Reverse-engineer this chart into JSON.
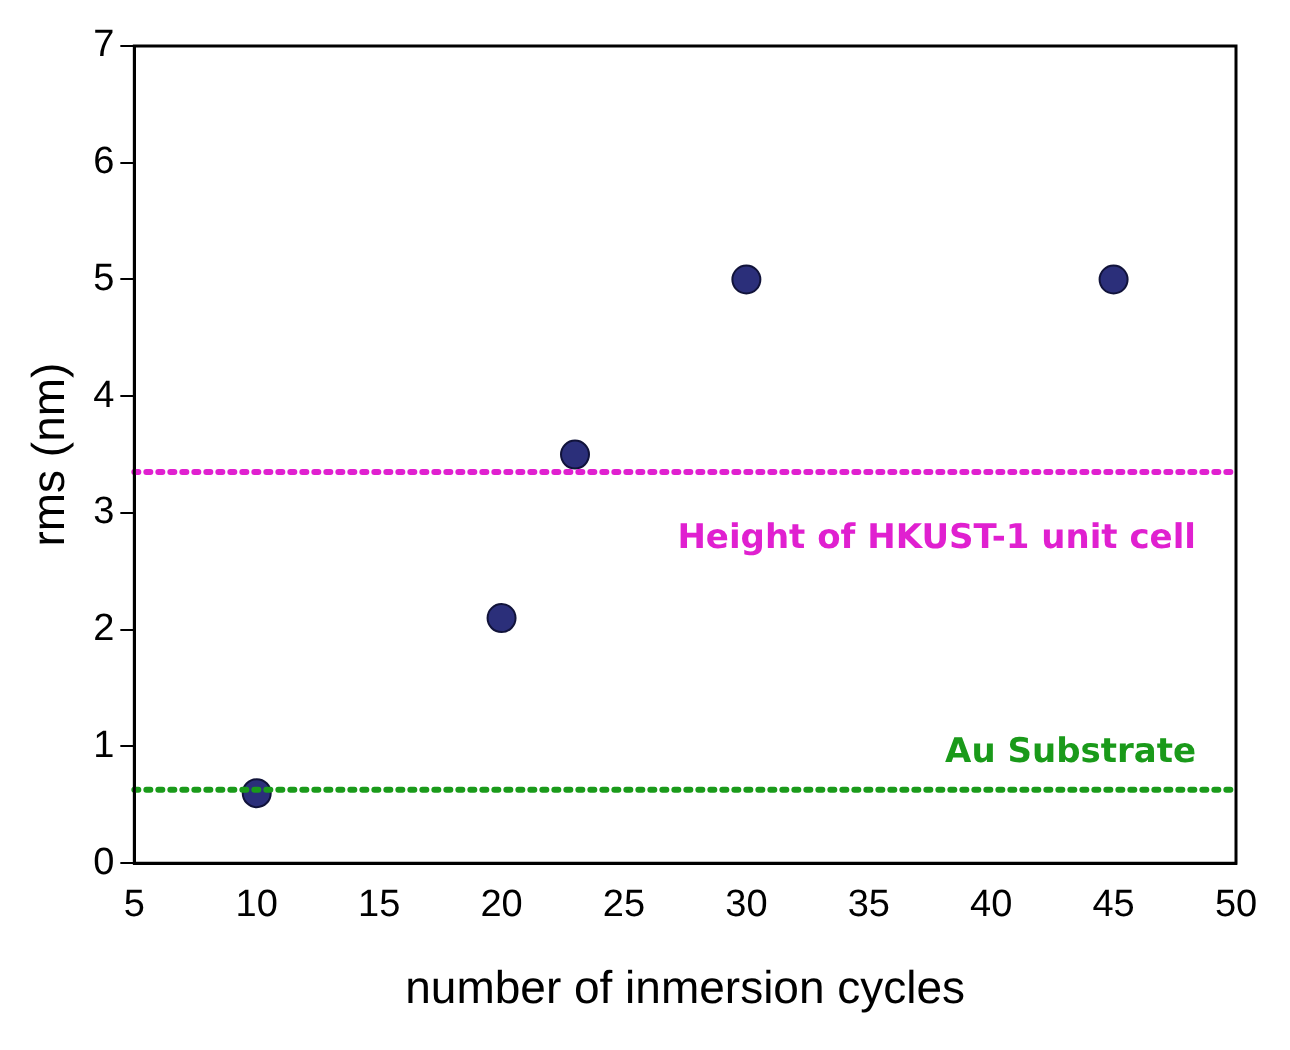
{
  "chart_data": {
    "type": "scatter",
    "xlabel": "number of inmersion cycles",
    "ylabel": "rms (nm)",
    "x": [
      10,
      20,
      23,
      30,
      45
    ],
    "series": [
      {
        "color": "#2b2f7a",
        "values": [
          0.6,
          2.1,
          3.5,
          5,
          5
        ]
      }
    ],
    "xlim": [
      5,
      50
    ],
    "xticks": [
      5,
      10,
      15,
      20,
      25,
      30,
      35,
      40,
      45,
      50
    ],
    "ylim": [
      0,
      7
    ],
    "yticks": [
      0,
      1,
      2,
      3,
      4,
      5,
      6,
      7
    ],
    "ref_lines": [
      {
        "axis": "y",
        "value": 3.35,
        "label": "Height of HKUST-1 unit cell",
        "color": "#e020d0",
        "line_style": "dotted"
      },
      {
        "axis": "y",
        "value": 0.63,
        "label": "Au Substrate",
        "color": "#1a9a1a",
        "line_style": "dotted"
      }
    ],
    "marker": "circle",
    "grid": false,
    "legend": false
  }
}
